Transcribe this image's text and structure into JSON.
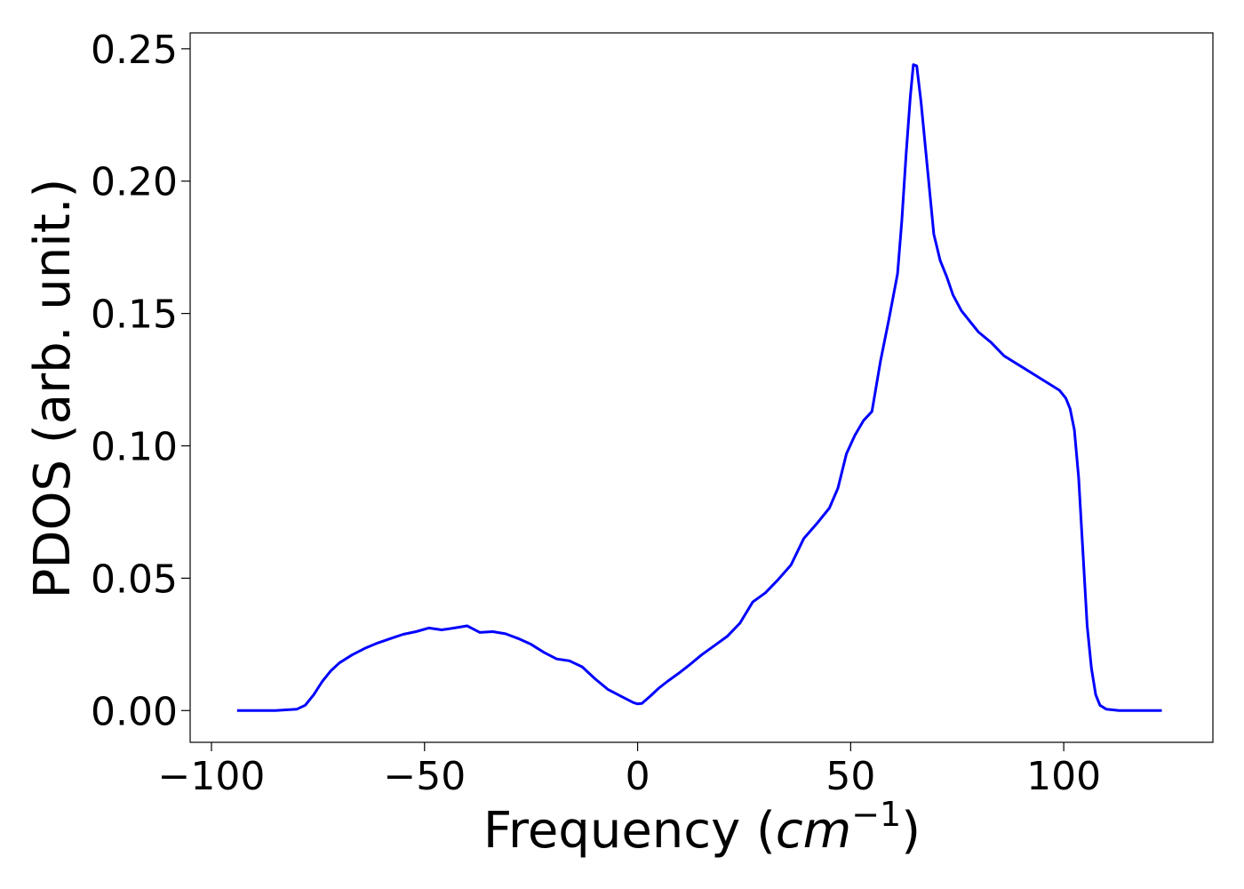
{
  "chart_data": {
    "type": "line",
    "xlabel": "Frequency (cm⁻¹)",
    "xlabel_parts": {
      "prefix": "Frequency (",
      "unit": "cm",
      "exponent": "−1",
      "suffix": ")"
    },
    "ylabel": "PDOS (arb. unit.)",
    "xlim": [
      -105,
      135
    ],
    "ylim": [
      -0.012,
      0.256
    ],
    "xticks": [
      -100,
      -50,
      0,
      50,
      100
    ],
    "xtick_labels": [
      "−100",
      "−50",
      "0",
      "50",
      "100"
    ],
    "yticks": [
      0.0,
      0.05,
      0.1,
      0.15,
      0.2,
      0.25
    ],
    "ytick_labels": [
      "0.00",
      "0.05",
      "0.10",
      "0.15",
      "0.20",
      "0.25"
    ],
    "grid": false,
    "series": [
      {
        "color": "#0000ff",
        "x": [
          -94,
          -85,
          -80,
          -78,
          -76,
          -74,
          -72,
          -70,
          -67,
          -64,
          -61,
          -58,
          -55,
          -52,
          -49,
          -46,
          -43,
          -40,
          -37,
          -34,
          -31,
          -28,
          -25,
          -22,
          -19,
          -16,
          -13,
          -10,
          -7,
          -4,
          -1,
          0,
          1,
          3,
          5,
          7,
          10,
          12,
          15,
          18,
          21,
          24,
          27,
          30,
          33,
          36,
          39,
          42,
          45,
          47,
          49,
          51,
          53,
          55,
          57,
          59,
          61,
          62,
          63,
          64,
          64.7,
          65.5,
          66.5,
          68,
          69.5,
          71,
          72.5,
          74,
          76,
          78,
          80,
          83,
          86,
          90,
          95,
          99,
          100.5,
          101.5,
          102.5,
          103.5,
          104.5,
          105.5,
          106.5,
          107.5,
          108.5,
          110,
          113,
          118,
          123
        ],
        "y": [
          0.0,
          0.0,
          0.0005,
          0.002,
          0.006,
          0.011,
          0.015,
          0.018,
          0.021,
          0.0235,
          0.0255,
          0.0272,
          0.0288,
          0.0298,
          0.0312,
          0.0305,
          0.0312,
          0.032,
          0.0295,
          0.0298,
          0.029,
          0.0272,
          0.025,
          0.022,
          0.0195,
          0.0188,
          0.0165,
          0.012,
          0.008,
          0.0055,
          0.003,
          0.0025,
          0.0027,
          0.0055,
          0.0085,
          0.011,
          0.0145,
          0.017,
          0.021,
          0.0245,
          0.028,
          0.033,
          0.041,
          0.0445,
          0.0495,
          0.055,
          0.065,
          0.0705,
          0.0765,
          0.084,
          0.097,
          0.104,
          0.1095,
          0.113,
          0.132,
          0.148,
          0.165,
          0.185,
          0.21,
          0.232,
          0.244,
          0.2435,
          0.23,
          0.205,
          0.18,
          0.17,
          0.164,
          0.157,
          0.151,
          0.147,
          0.143,
          0.139,
          0.134,
          0.13,
          0.125,
          0.121,
          0.118,
          0.114,
          0.106,
          0.088,
          0.06,
          0.032,
          0.016,
          0.006,
          0.002,
          0.0005,
          0.0,
          0.0,
          0.0
        ]
      }
    ]
  }
}
